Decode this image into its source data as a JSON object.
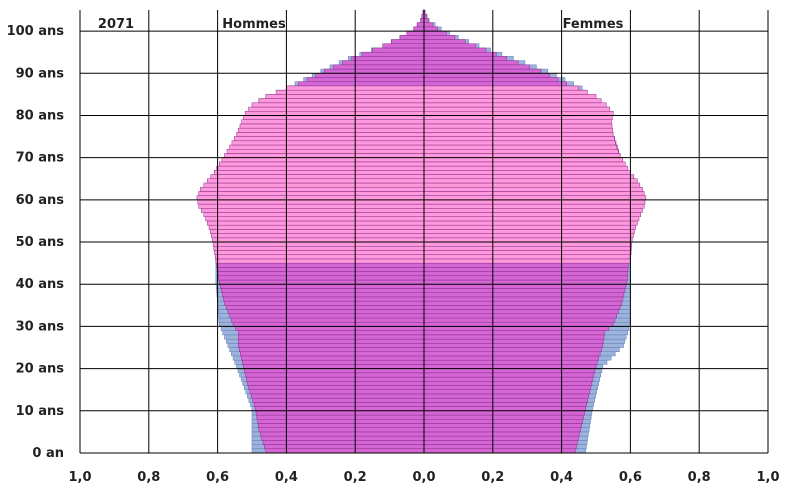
{
  "chart_data": {
    "type": "bar",
    "orientation": "population-pyramid",
    "year_label": "2071",
    "left_label": "Hommes",
    "right_label": "Femmes",
    "x_ticks": [
      "1,0",
      "0,8",
      "0,6",
      "0,4",
      "0,2",
      "0,0",
      "0,2",
      "0,4",
      "0,6",
      "0,8",
      "1,0"
    ],
    "y_ticks": [
      "0 an",
      "10 ans",
      "20 ans",
      "30 ans",
      "40 ans",
      "50 ans",
      "60 ans",
      "70 ans",
      "80 ans",
      "90 ans",
      "100 ans"
    ],
    "xlim": [
      -1.0,
      1.0
    ],
    "ylim": [
      0,
      105
    ],
    "grid": true,
    "colors": {
      "blue": "#9db3dc",
      "blue_edge": "#5f7fb8",
      "magenta": "#d566d5",
      "magenta_edge": "#8a2f8a",
      "pink": "#ff99dd",
      "grid": "#000000"
    },
    "series": [
      {
        "series_role": "reference",
        "color": "blue",
        "men_keypoints": [
          [
            0,
            0.5
          ],
          [
            10,
            0.5
          ],
          [
            20,
            0.545
          ],
          [
            25,
            0.57
          ],
          [
            30,
            0.595
          ],
          [
            35,
            0.6
          ],
          [
            40,
            0.605
          ],
          [
            45,
            0.605
          ],
          [
            50,
            0.6
          ],
          [
            55,
            0.61
          ],
          [
            60,
            0.62
          ],
          [
            65,
            0.59
          ],
          [
            70,
            0.56
          ],
          [
            75,
            0.53
          ],
          [
            80,
            0.5
          ],
          [
            83,
            0.48
          ],
          [
            86,
            0.4
          ],
          [
            90,
            0.3
          ],
          [
            93,
            0.22
          ],
          [
            96,
            0.12
          ],
          [
            98,
            0.07
          ],
          [
            100,
            0.03
          ],
          [
            102,
            0.01
          ],
          [
            104,
            0.003
          ]
        ],
        "women_keypoints": [
          [
            0,
            0.47
          ],
          [
            10,
            0.49
          ],
          [
            20,
            0.52
          ],
          [
            25,
            0.58
          ],
          [
            30,
            0.6
          ],
          [
            35,
            0.6
          ],
          [
            40,
            0.6
          ],
          [
            45,
            0.6
          ],
          [
            50,
            0.595
          ],
          [
            55,
            0.6
          ],
          [
            60,
            0.62
          ],
          [
            65,
            0.6
          ],
          [
            70,
            0.57
          ],
          [
            75,
            0.55
          ],
          [
            80,
            0.53
          ],
          [
            83,
            0.5
          ],
          [
            86,
            0.46
          ],
          [
            90,
            0.36
          ],
          [
            93,
            0.26
          ],
          [
            96,
            0.16
          ],
          [
            98,
            0.1
          ],
          [
            100,
            0.05
          ],
          [
            102,
            0.015
          ],
          [
            104,
            0.003
          ]
        ]
      },
      {
        "series_role": "main",
        "color": "magenta",
        "men_keypoints": [
          [
            0,
            0.46
          ],
          [
            5,
            0.48
          ],
          [
            10,
            0.49
          ],
          [
            15,
            0.51
          ],
          [
            20,
            0.525
          ],
          [
            25,
            0.54
          ],
          [
            28,
            0.54
          ],
          [
            30,
            0.555
          ],
          [
            35,
            0.58
          ],
          [
            40,
            0.595
          ],
          [
            45,
            0.605
          ],
          [
            50,
            0.61
          ],
          [
            55,
            0.615
          ],
          [
            60,
            0.62
          ],
          [
            63,
            0.61
          ],
          [
            65,
            0.58
          ],
          [
            70,
            0.55
          ],
          [
            75,
            0.52
          ],
          [
            80,
            0.5
          ],
          [
            83,
            0.46
          ],
          [
            86,
            0.39
          ],
          [
            90,
            0.29
          ],
          [
            93,
            0.21
          ],
          [
            96,
            0.12
          ],
          [
            98,
            0.07
          ],
          [
            100,
            0.03
          ],
          [
            102,
            0.01
          ],
          [
            104,
            0.003
          ]
        ],
        "women_keypoints": [
          [
            0,
            0.44
          ],
          [
            5,
            0.455
          ],
          [
            10,
            0.47
          ],
          [
            15,
            0.485
          ],
          [
            20,
            0.5
          ],
          [
            25,
            0.52
          ],
          [
            28,
            0.525
          ],
          [
            30,
            0.55
          ],
          [
            35,
            0.575
          ],
          [
            40,
            0.59
          ],
          [
            45,
            0.595
          ],
          [
            50,
            0.595
          ],
          [
            55,
            0.6
          ],
          [
            60,
            0.6
          ],
          [
            65,
            0.59
          ],
          [
            70,
            0.57
          ],
          [
            75,
            0.55
          ],
          [
            80,
            0.53
          ],
          [
            83,
            0.49
          ],
          [
            86,
            0.44
          ],
          [
            90,
            0.34
          ],
          [
            93,
            0.24
          ],
          [
            96,
            0.15
          ],
          [
            98,
            0.09
          ],
          [
            100,
            0.04
          ],
          [
            102,
            0.012
          ],
          [
            104,
            0.003
          ]
        ]
      },
      {
        "series_role": "outline",
        "color": "pink",
        "men_keypoints": [
          [
            45,
            0.605
          ],
          [
            50,
            0.615
          ],
          [
            53,
            0.625
          ],
          [
            56,
            0.64
          ],
          [
            58,
            0.655
          ],
          [
            60,
            0.66
          ],
          [
            62,
            0.65
          ],
          [
            64,
            0.63
          ],
          [
            66,
            0.61
          ],
          [
            68,
            0.595
          ],
          [
            70,
            0.58
          ],
          [
            72,
            0.565
          ],
          [
            75,
            0.545
          ],
          [
            78,
            0.53
          ],
          [
            80,
            0.52
          ],
          [
            82,
            0.5
          ],
          [
            84,
            0.46
          ],
          [
            86,
            0.4
          ]
        ],
        "women_keypoints": [
          [
            45,
            0.6
          ],
          [
            50,
            0.605
          ],
          [
            53,
            0.615
          ],
          [
            56,
            0.63
          ],
          [
            58,
            0.64
          ],
          [
            60,
            0.645
          ],
          [
            62,
            0.635
          ],
          [
            64,
            0.62
          ],
          [
            66,
            0.6
          ],
          [
            68,
            0.585
          ],
          [
            70,
            0.57
          ],
          [
            72,
            0.56
          ],
          [
            75,
            0.55
          ],
          [
            78,
            0.545
          ],
          [
            80,
            0.55
          ],
          [
            82,
            0.53
          ],
          [
            84,
            0.5
          ],
          [
            86,
            0.45
          ]
        ]
      }
    ]
  }
}
